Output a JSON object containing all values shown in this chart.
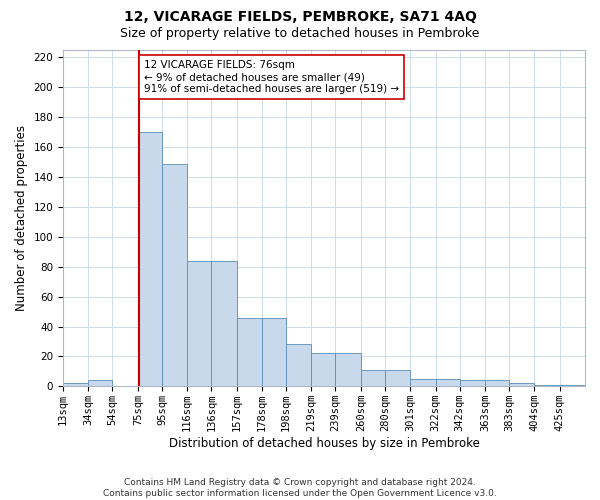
{
  "title": "12, VICARAGE FIELDS, PEMBROKE, SA71 4AQ",
  "subtitle": "Size of property relative to detached houses in Pembroke",
  "xlabel": "Distribution of detached houses by size in Pembroke",
  "ylabel": "Number of detached properties",
  "footer_line1": "Contains HM Land Registry data © Crown copyright and database right 2024.",
  "footer_line2": "Contains public sector information licensed under the Open Government Licence v3.0.",
  "bin_labels": [
    "13sqm",
    "34sqm",
    "54sqm",
    "75sqm",
    "95sqm",
    "116sqm",
    "136sqm",
    "157sqm",
    "178sqm",
    "198sqm",
    "219sqm",
    "239sqm",
    "260sqm",
    "280sqm",
    "301sqm",
    "322sqm",
    "342sqm",
    "363sqm",
    "383sqm",
    "404sqm",
    "425sqm"
  ],
  "bin_edges": [
    13,
    34,
    54,
    75,
    95,
    116,
    136,
    157,
    178,
    198,
    219,
    239,
    260,
    280,
    301,
    322,
    342,
    363,
    383,
    404,
    425,
    446
  ],
  "bar_heights": [
    2,
    4,
    0,
    170,
    149,
    84,
    84,
    46,
    46,
    28,
    22,
    22,
    11,
    11,
    5,
    5,
    4,
    4,
    2,
    1,
    1
  ],
  "bar_color": "#c9d9ec",
  "bar_edge_color": "#5b8db8",
  "property_line_x": 76,
  "property_line_color": "#cc0000",
  "annotation_line1": "12 VICARAGE FIELDS: 76sqm",
  "annotation_line2": "← 9% of detached houses are smaller (49)",
  "annotation_line3": "91% of semi-detached houses are larger (519) →",
  "annotation_box_color": "#ffffff",
  "annotation_box_edge": "#cc0000",
  "ylim": [
    0,
    225
  ],
  "yticks": [
    0,
    20,
    40,
    60,
    80,
    100,
    120,
    140,
    160,
    180,
    200,
    220
  ],
  "background_color": "#ffffff",
  "grid_color": "#c8d8e8",
  "title_fontsize": 10,
  "subtitle_fontsize": 9,
  "axis_label_fontsize": 8.5,
  "tick_fontsize": 7.5,
  "annotation_fontsize": 7.5,
  "footer_fontsize": 6.5
}
